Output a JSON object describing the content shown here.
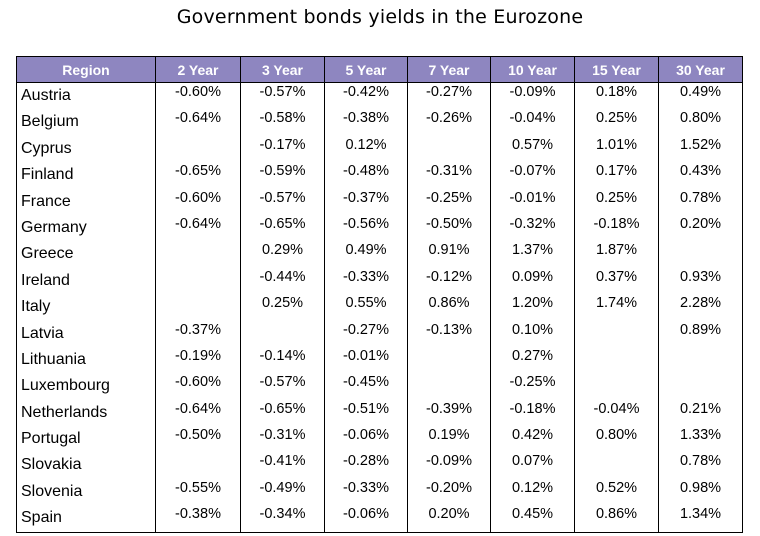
{
  "chart_data": {
    "type": "table",
    "title": "Government bonds yields in the Eurozone",
    "columns": [
      "Region",
      "2 Year",
      "3 Year",
      "5 Year",
      "7 Year",
      "10 Year",
      "15 Year",
      "30 Year"
    ],
    "rows": [
      [
        "Austria",
        "-0.60%",
        "-0.57%",
        "-0.42%",
        "-0.27%",
        "-0.09%",
        "0.18%",
        "0.49%"
      ],
      [
        "Belgium",
        "-0.64%",
        "-0.58%",
        "-0.38%",
        "-0.26%",
        "-0.04%",
        "0.25%",
        "0.80%"
      ],
      [
        "Cyprus",
        "",
        "-0.17%",
        "0.12%",
        "",
        "0.57%",
        "1.01%",
        "1.52%"
      ],
      [
        "Finland",
        "-0.65%",
        "-0.59%",
        "-0.48%",
        "-0.31%",
        "-0.07%",
        "0.17%",
        "0.43%"
      ],
      [
        "France",
        "-0.60%",
        "-0.57%",
        "-0.37%",
        "-0.25%",
        "-0.01%",
        "0.25%",
        "0.78%"
      ],
      [
        "Germany",
        "-0.64%",
        "-0.65%",
        "-0.56%",
        "-0.50%",
        "-0.32%",
        "-0.18%",
        "0.20%"
      ],
      [
        "Greece",
        "",
        "0.29%",
        "0.49%",
        "0.91%",
        "1.37%",
        "1.87%",
        ""
      ],
      [
        "Ireland",
        "",
        "-0.44%",
        "-0.33%",
        "-0.12%",
        "0.09%",
        "0.37%",
        "0.93%"
      ],
      [
        "Italy",
        "",
        "0.25%",
        "0.55%",
        "0.86%",
        "1.20%",
        "1.74%",
        "2.28%"
      ],
      [
        "Latvia",
        "-0.37%",
        "",
        "-0.27%",
        "-0.13%",
        "0.10%",
        "",
        "0.89%"
      ],
      [
        "Lithuania",
        "-0.19%",
        "-0.14%",
        "-0.01%",
        "",
        "0.27%",
        "",
        ""
      ],
      [
        "Luxembourg",
        "-0.60%",
        "-0.57%",
        "-0.45%",
        "",
        "-0.25%",
        "",
        ""
      ],
      [
        "Netherlands",
        "-0.64%",
        "-0.65%",
        "-0.51%",
        "-0.39%",
        "-0.18%",
        "-0.04%",
        "0.21%"
      ],
      [
        "Portugal",
        "-0.50%",
        "-0.31%",
        "-0.06%",
        "0.19%",
        "0.42%",
        "0.80%",
        "1.33%"
      ],
      [
        "Slovakia",
        "",
        "-0.41%",
        "-0.28%",
        "-0.09%",
        "0.07%",
        "",
        "0.78%"
      ],
      [
        "Slovenia",
        "-0.55%",
        "-0.49%",
        "-0.33%",
        "-0.20%",
        "0.12%",
        "0.52%",
        "0.98%"
      ],
      [
        "Spain",
        "-0.38%",
        "-0.34%",
        "-0.06%",
        "0.20%",
        "0.45%",
        "0.86%",
        "1.34%"
      ]
    ]
  },
  "colors": {
    "header_bg": "#8e86c0",
    "header_text": "#ffffff",
    "border": "#000000"
  }
}
